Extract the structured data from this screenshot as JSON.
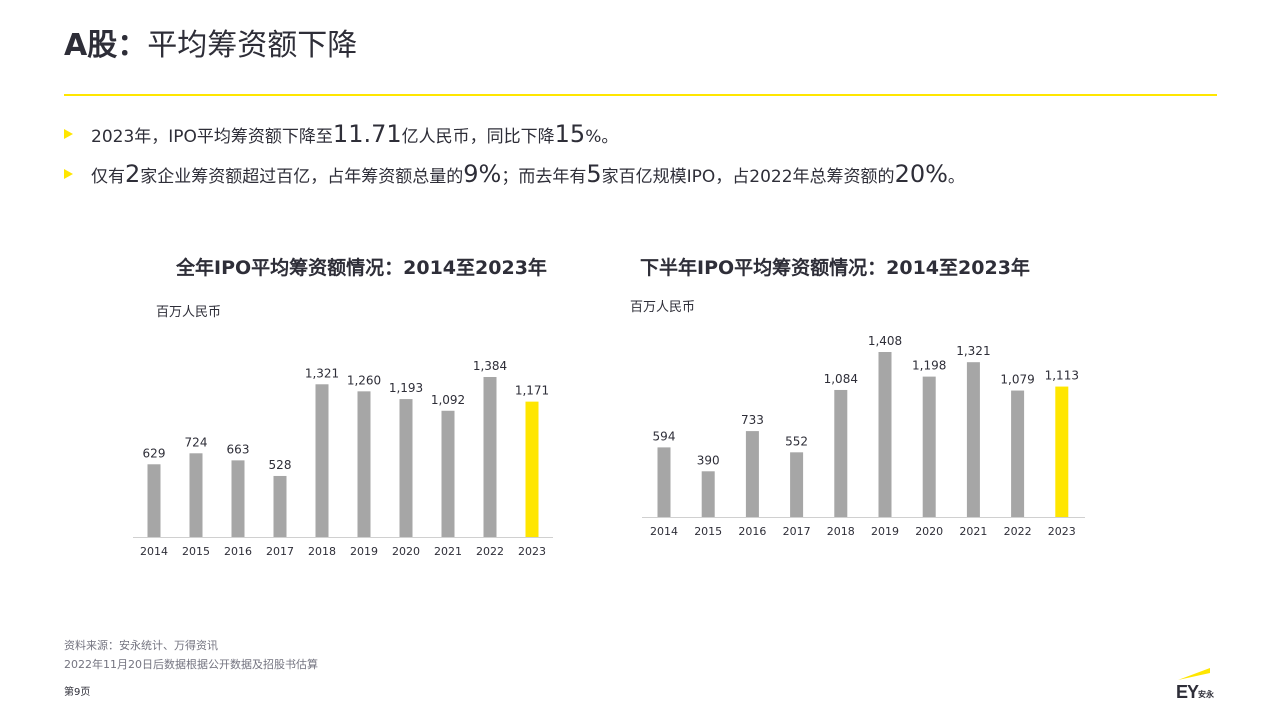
{
  "header": {
    "title_bold": "A股：",
    "title_rest": "平均筹资额下降"
  },
  "bullets": [
    {
      "parts": [
        "2023年，IPO平均筹资额下降至",
        "11.71",
        "亿人民币，同比下降",
        "15",
        "%。"
      ]
    },
    {
      "parts": [
        "仅有",
        "2",
        "家企业筹资额超过百亿，占年筹资额总量的",
        "9%",
        "；而去年有",
        "5",
        "家百亿规模IPO，占2022年总筹资额的",
        "20%",
        "。"
      ]
    }
  ],
  "colors": {
    "accent": "#ffe600",
    "bar_gray": "#a6a6a6",
    "text": "#2e2e38",
    "muted": "#747480"
  },
  "chart_data": [
    {
      "type": "bar",
      "title": "全年IPO平均筹资额情况：2014至2023年",
      "ylabel": "百万人民币",
      "categories": [
        "2014",
        "2015",
        "2016",
        "2017",
        "2018",
        "2019",
        "2020",
        "2021",
        "2022",
        "2023"
      ],
      "values": [
        629,
        724,
        663,
        528,
        1321,
        1260,
        1193,
        1092,
        1384,
        1171
      ],
      "value_labels": [
        "629",
        "724",
        "663",
        "528",
        "1,321",
        "1,260",
        "1,193",
        "1,092",
        "1,384",
        "1,171"
      ],
      "highlight_index": 9,
      "ylim": [
        0,
        1384
      ],
      "grid": false
    },
    {
      "type": "bar",
      "title": "下半年IPO平均筹资额情况：2014至2023年",
      "ylabel": "百万人民币",
      "categories": [
        "2014",
        "2015",
        "2016",
        "2017",
        "2018",
        "2019",
        "2020",
        "2021",
        "2022",
        "2023"
      ],
      "values": [
        594,
        390,
        733,
        552,
        1084,
        1408,
        1198,
        1321,
        1079,
        1113
      ],
      "value_labels": [
        "594",
        "390",
        "733",
        "552",
        "1,084",
        "1,408",
        "1,198",
        "1,321",
        "1,079",
        "1,113"
      ],
      "highlight_index": 9,
      "ylim": [
        0,
        1408
      ],
      "grid": false
    }
  ],
  "footer": {
    "source_line1": "资料来源：安永统计、万得资讯",
    "source_line2": "2022年11月20日后数据根据公开数据及招股书估算",
    "page": "第9页"
  },
  "logo": {
    "mark": "EY",
    "cn": "安永"
  }
}
